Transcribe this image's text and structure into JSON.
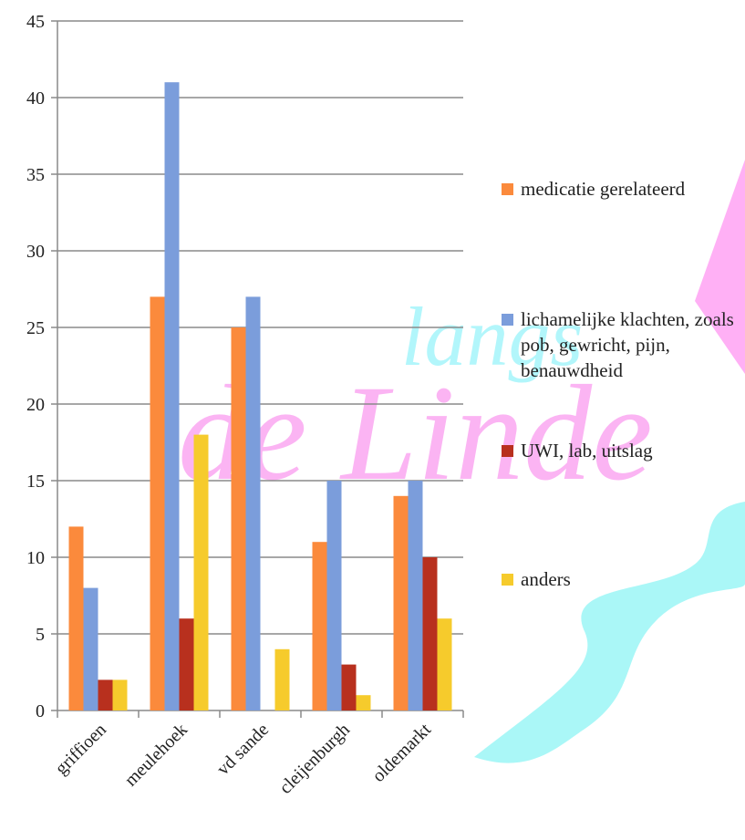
{
  "watermark": {
    "line1": "langs",
    "line2": "de Linde"
  },
  "chart_data": {
    "type": "bar",
    "categories": [
      "griffioen",
      "meulehoek",
      "vd sande",
      "cleijenburgh",
      "oldemarkt"
    ],
    "series": [
      {
        "name": "medicatie gerelateerd",
        "color": "#fb8a3c",
        "values": [
          12,
          27,
          25,
          11,
          14
        ]
      },
      {
        "name": "lichamelijke klachten, zoals pob, gewricht, pijn, benauwdheid",
        "color": "#7b9ddb",
        "values": [
          8,
          41,
          27,
          15,
          15
        ]
      },
      {
        "name": "UWI, lab, uitslag",
        "color": "#b8301e",
        "values": [
          2,
          6,
          0,
          3,
          10
        ]
      },
      {
        "name": "anders",
        "color": "#f6cb2c",
        "values": [
          2,
          18,
          4,
          1,
          6
        ]
      }
    ],
    "ylim": [
      0,
      45
    ],
    "yticks": [
      0,
      5,
      10,
      15,
      20,
      25,
      30,
      35,
      40,
      45
    ],
    "grid": true,
    "legend": "right"
  }
}
